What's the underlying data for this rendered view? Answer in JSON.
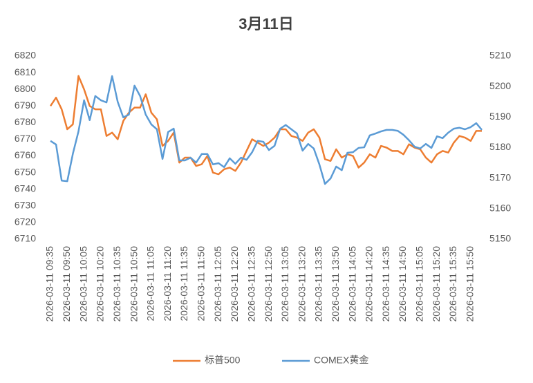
{
  "chart_data": {
    "type": "line",
    "title": "3月11日",
    "categories": [
      "2026-03-11 09:35",
      null,
      null,
      "2026-03-11 09:50",
      null,
      null,
      "2026-03-11 10:05",
      null,
      null,
      "2026-03-11 10:20",
      null,
      null,
      "2026-03-11 10:35",
      null,
      null,
      "2026-03-11 10:50",
      null,
      null,
      "2026-03-11 11:05",
      null,
      null,
      "2026-03-11 11:20",
      null,
      null,
      "2026-03-11 11:35",
      null,
      null,
      "2026-03-11 11:50",
      null,
      null,
      "2026-03-11 12:05",
      null,
      null,
      "2026-03-11 12:20",
      null,
      null,
      "2026-03-11 12:35",
      null,
      null,
      "2026-03-11 12:50",
      null,
      null,
      "2026-03-11 13:05",
      null,
      null,
      "2026-03-11 13:20",
      null,
      null,
      "2026-03-11 13:35",
      null,
      null,
      "2026-03-11 13:50",
      null,
      null,
      "2026-03-11 14:05",
      null,
      null,
      "2026-03-11 14:20",
      null,
      null,
      "2026-03-11 14:35",
      null,
      null,
      "2026-03-11 14:50",
      null,
      null,
      "2026-03-11 15:05",
      null,
      null,
      "2026-03-11 15:20",
      null,
      null,
      "2026-03-11 15:35",
      null,
      null,
      "2026-03-11 15:50",
      null,
      null
    ],
    "series": [
      {
        "name": "标普500",
        "color": "#ED7D31",
        "axis": "y",
        "values": [
          6790,
          6795,
          6788,
          6776,
          6779,
          6808,
          6800,
          6790,
          6788,
          6788,
          6772,
          6774,
          6770,
          6781,
          6786,
          6789,
          6789,
          6797,
          6786,
          6782,
          6766,
          6769,
          6774,
          6756,
          6759,
          6759,
          6754,
          6755,
          6760,
          6750,
          6749,
          6752,
          6753,
          6751,
          6756,
          6763,
          6770,
          6768,
          6766,
          6768,
          6771,
          6776,
          6776,
          6772,
          6771,
          6769,
          6774,
          6776,
          6771,
          6758,
          6757,
          6764,
          6759,
          6761,
          6760,
          6753,
          6756,
          6761,
          6759,
          6766,
          6765,
          6763,
          6763,
          6761,
          6767,
          6765,
          6764,
          6759,
          6756,
          6761,
          6763,
          6762,
          6768,
          6772,
          6771,
          6769,
          6775,
          6775
        ]
      },
      {
        "name": "COMEX黄金",
        "color": "#5B9BD5",
        "axis": "y2",
        "values": [
          5182.2,
          5181,
          5169.2,
          5169,
          5178,
          5185.3,
          5195.5,
          5189,
          5196.9,
          5195.5,
          5194.8,
          5203.4,
          5195,
          5189.9,
          5190.8,
          5200.3,
          5196.9,
          5190.8,
          5187.6,
          5186,
          5176.3,
          5185.1,
          5186.2,
          5175.8,
          5175.8,
          5176.7,
          5175.1,
          5177.9,
          5177.9,
          5174.5,
          5174.9,
          5173.6,
          5176.5,
          5174.7,
          5176.7,
          5176,
          5178.5,
          5182.2,
          5181.9,
          5179.2,
          5180.6,
          5186.2,
          5187.4,
          5186,
          5184.6,
          5179,
          5181.2,
          5179.7,
          5174.5,
          5168.1,
          5169.9,
          5173.8,
          5172.6,
          5178.3,
          5178.5,
          5179.9,
          5180.1,
          5184,
          5184.6,
          5185.3,
          5185.8,
          5185.8,
          5185.5,
          5184.2,
          5182.4,
          5180.3,
          5179.7,
          5181.2,
          5179.9,
          5183.7,
          5183.1,
          5184.9,
          5186.2,
          5186.5,
          5186,
          5186.7,
          5188,
          5185.8
        ]
      }
    ],
    "ylim": [
      6710,
      6820
    ],
    "yticks": [
      6710,
      6720,
      6730,
      6740,
      6750,
      6760,
      6770,
      6780,
      6790,
      6800,
      6810,
      6820
    ],
    "y2lim": [
      5150,
      5210
    ],
    "y2ticks": [
      5150,
      5160,
      5170,
      5180,
      5190,
      5200,
      5210
    ],
    "grid": false,
    "legend": "bottom"
  }
}
